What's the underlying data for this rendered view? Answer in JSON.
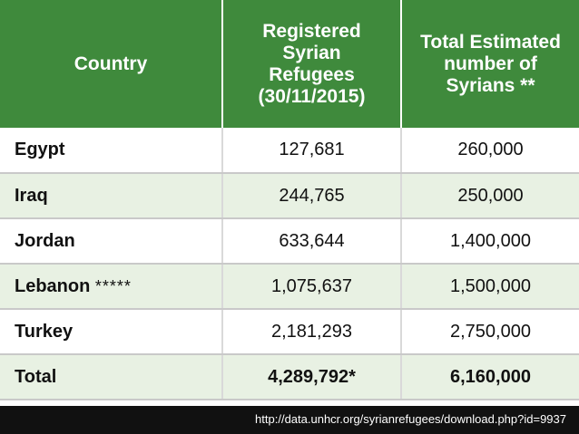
{
  "table": {
    "headers": {
      "country": "Country",
      "registered": [
        "Registered",
        "Syrian",
        "Refugees",
        "(30/11/2015)"
      ],
      "estimated": [
        "Total Estimated",
        "number of",
        "Syrians **"
      ]
    },
    "rows": [
      {
        "country": "Egypt",
        "note": "",
        "registered": "127,681",
        "estimated": "260,000"
      },
      {
        "country": "Iraq",
        "note": "",
        "registered": "244,765",
        "estimated": "250,000"
      },
      {
        "country": "Jordan",
        "note": "",
        "registered": "633,644",
        "estimated": "1,400,000"
      },
      {
        "country": "Lebanon",
        "note": "*****",
        "registered": "1,075,637",
        "estimated": "1,500,000"
      },
      {
        "country": "Turkey",
        "note": "",
        "registered": "2,181,293",
        "estimated": "2,750,000"
      }
    ],
    "total": {
      "label": "Total",
      "registered": "4,289,792*",
      "estimated": "6,160,000"
    }
  },
  "source": {
    "url": "http://data.unhcr.org/syrianrefugees/download.php?id=9937"
  },
  "colors": {
    "header_bg": "#3f8a3c",
    "alt_row_bg": "#e8f1e3",
    "source_bar_bg": "#111111"
  }
}
